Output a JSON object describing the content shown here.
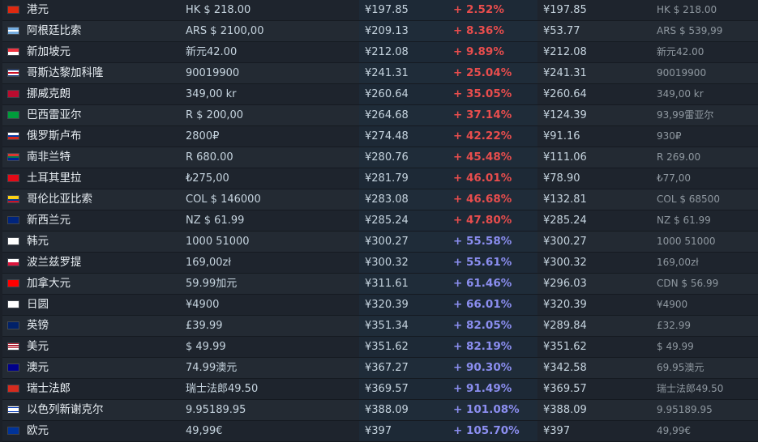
{
  "rows": [
    {
      "flag": "hk",
      "name": "港元",
      "price": "HK $ 218.00",
      "converted": "¥197.85",
      "diff": "+ 2.52%",
      "sign": "neg",
      "adjusted": "¥197.85",
      "adjusted_price": "HK $ 218.00"
    },
    {
      "flag": "ar",
      "name": "阿根廷比索",
      "price": "ARS $ 2100,00",
      "converted": "¥209.13",
      "diff": "+ 8.36%",
      "sign": "neg",
      "adjusted": "¥53.77",
      "adjusted_price": "ARS $ 539,99"
    },
    {
      "flag": "sg",
      "name": "新加坡元",
      "price": "新元42.00",
      "converted": "¥212.08",
      "diff": "+ 9.89%",
      "sign": "neg",
      "adjusted": "¥212.08",
      "adjusted_price": "新元42.00"
    },
    {
      "flag": "cr",
      "name": "哥斯达黎加科隆",
      "price": "90019900",
      "converted": "¥241.31",
      "diff": "+ 25.04%",
      "sign": "neg",
      "adjusted": "¥241.31",
      "adjusted_price": "90019900"
    },
    {
      "flag": "no",
      "name": "挪威克朗",
      "price": "349,00 kr",
      "converted": "¥260.64",
      "diff": "+ 35.05%",
      "sign": "neg",
      "adjusted": "¥260.64",
      "adjusted_price": "349,00 kr"
    },
    {
      "flag": "br",
      "name": "巴西雷亚尔",
      "price": "R $ 200,00",
      "converted": "¥264.68",
      "diff": "+ 37.14%",
      "sign": "neg",
      "adjusted": "¥124.39",
      "adjusted_price": "93,99雷亚尔"
    },
    {
      "flag": "ru",
      "name": "俄罗斯卢布",
      "price": "2800₽",
      "converted": "¥274.48",
      "diff": "+ 42.22%",
      "sign": "neg",
      "adjusted": "¥91.16",
      "adjusted_price": "930₽"
    },
    {
      "flag": "za",
      "name": "南非兰特",
      "price": "R 680.00",
      "converted": "¥280.76",
      "diff": "+ 45.48%",
      "sign": "neg",
      "adjusted": "¥111.06",
      "adjusted_price": "R 269.00"
    },
    {
      "flag": "tr",
      "name": "土耳其里拉",
      "price": "₺275,00",
      "converted": "¥281.79",
      "diff": "+ 46.01%",
      "sign": "neg",
      "adjusted": "¥78.90",
      "adjusted_price": "₺77,00"
    },
    {
      "flag": "co",
      "name": "哥伦比亚比索",
      "price": "COL $ 146000",
      "converted": "¥283.08",
      "diff": "+ 46.68%",
      "sign": "neg",
      "adjusted": "¥132.81",
      "adjusted_price": "COL $ 68500"
    },
    {
      "flag": "nz",
      "name": "新西兰元",
      "price": "NZ $ 61.99",
      "converted": "¥285.24",
      "diff": "+ 47.80%",
      "sign": "neg",
      "adjusted": "¥285.24",
      "adjusted_price": "NZ $ 61.99"
    },
    {
      "flag": "kr",
      "name": "韩元",
      "price": "1000 51000",
      "converted": "¥300.27",
      "diff": "+ 55.58%",
      "sign": "pos",
      "adjusted": "¥300.27",
      "adjusted_price": "1000 51000"
    },
    {
      "flag": "pl",
      "name": "波兰兹罗提",
      "price": "169,00zł",
      "converted": "¥300.32",
      "diff": "+ 55.61%",
      "sign": "pos",
      "adjusted": "¥300.32",
      "adjusted_price": "169,00zł"
    },
    {
      "flag": "ca",
      "name": "加拿大元",
      "price": "59.99加元",
      "converted": "¥311.61",
      "diff": "+ 61.46%",
      "sign": "pos",
      "adjusted": "¥296.03",
      "adjusted_price": "CDN $ 56.99"
    },
    {
      "flag": "jp",
      "name": "日圆",
      "price": "¥4900",
      "converted": "¥320.39",
      "diff": "+ 66.01%",
      "sign": "pos",
      "adjusted": "¥320.39",
      "adjusted_price": "¥4900"
    },
    {
      "flag": "gb",
      "name": "英镑",
      "price": "£39.99",
      "converted": "¥351.34",
      "diff": "+ 82.05%",
      "sign": "pos",
      "adjusted": "¥289.84",
      "adjusted_price": "£32.99"
    },
    {
      "flag": "us",
      "name": "美元",
      "price": "$ 49.99",
      "converted": "¥351.62",
      "diff": "+ 82.19%",
      "sign": "pos",
      "adjusted": "¥351.62",
      "adjusted_price": "$ 49.99"
    },
    {
      "flag": "au",
      "name": "澳元",
      "price": "74.99澳元",
      "converted": "¥367.27",
      "diff": "+ 90.30%",
      "sign": "pos",
      "adjusted": "¥342.58",
      "adjusted_price": "69.95澳元"
    },
    {
      "flag": "ch",
      "name": "瑞士法郎",
      "price": "瑞士法郎49.50",
      "converted": "¥369.57",
      "diff": "+ 91.49%",
      "sign": "pos",
      "adjusted": "¥369.57",
      "adjusted_price": "瑞士法郎49.50"
    },
    {
      "flag": "il",
      "name": "以色列新谢克尔",
      "price": "9.95189.95",
      "converted": "¥388.09",
      "diff": "+ 101.08%",
      "sign": "pos",
      "adjusted": "¥388.09",
      "adjusted_price": "9.95189.95"
    },
    {
      "flag": "eu",
      "name": "欧元",
      "price": "49,99€",
      "converted": "¥397",
      "diff": "+ 105.70%",
      "sign": "pos",
      "adjusted": "¥397",
      "adjusted_price": "49,99€"
    }
  ]
}
